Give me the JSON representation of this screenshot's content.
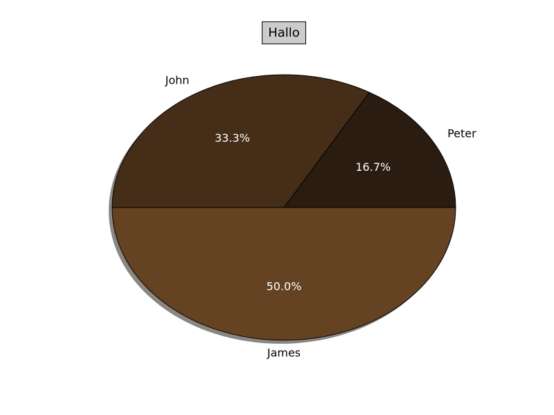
{
  "chart_data": {
    "type": "pie",
    "title": "Hallo",
    "slices": [
      {
        "label": "Peter",
        "value": 16.7,
        "pct_label": "16.7%",
        "color": "#2a1c10"
      },
      {
        "label": "John",
        "value": 33.3,
        "pct_label": "33.3%",
        "color": "#452d18"
      },
      {
        "label": "James",
        "value": 50.0,
        "pct_label": "50.0%",
        "color": "#644222"
      }
    ],
    "start_angle": 0,
    "direction": "counterclockwise",
    "shadow": true,
    "shadow_color": "#8a8682",
    "edge_color": "#000000",
    "title_box_color": "#cccccc",
    "legend": "none"
  }
}
